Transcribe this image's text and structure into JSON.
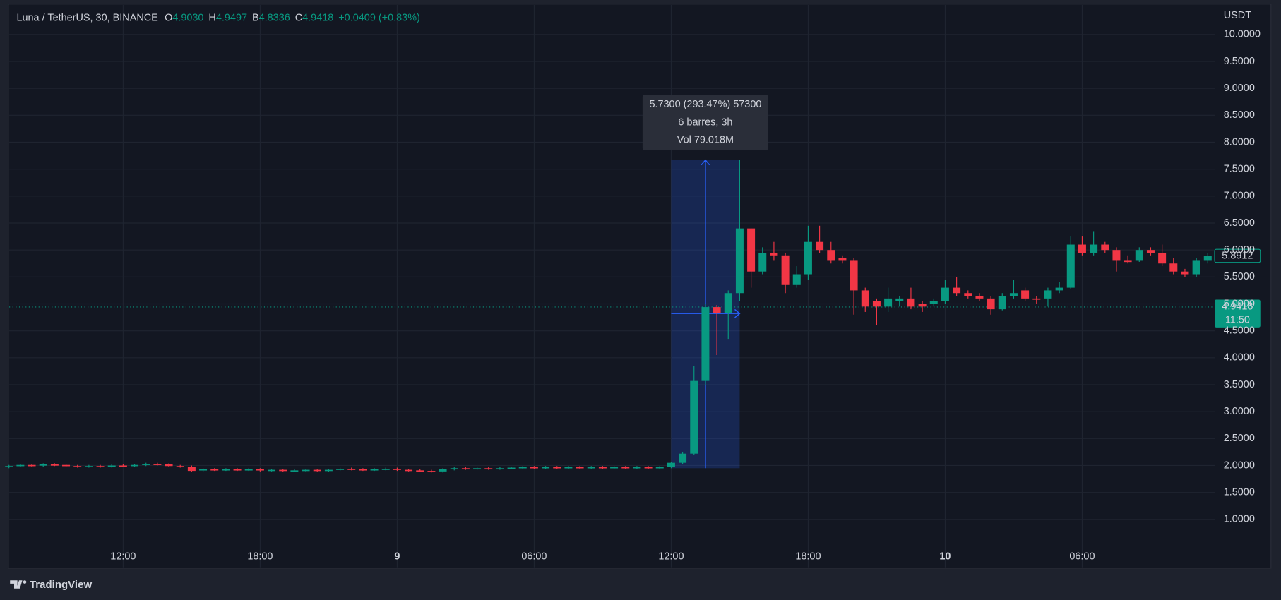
{
  "header": {
    "symbol": "Luna / TetherUS, 30, BINANCE",
    "o_key": "O",
    "o_value": "4.9030",
    "h_key": "H",
    "h_value": "4.9497",
    "b_key": "B",
    "b_value": "4.8336",
    "c_key": "C",
    "c_value": "4.9418",
    "change": "+0.0409 (+0.83%)"
  },
  "chart_data": {
    "type": "candlestick",
    "y_axis_label": "USDT",
    "up_color": "#089981",
    "down_color": "#f23645",
    "grid": true,
    "xlim": [
      -0.05,
      105.6
    ],
    "xticks": [
      {
        "value": 10,
        "label": "12:00"
      },
      {
        "value": 22,
        "label": "18:00"
      },
      {
        "value": 34,
        "label": "9"
      },
      {
        "value": 46,
        "label": "06:00"
      },
      {
        "value": 58,
        "label": "12:00"
      },
      {
        "value": 70,
        "label": "18:00"
      },
      {
        "value": 82,
        "label": "10"
      },
      {
        "value": 94,
        "label": "06:00"
      }
    ],
    "ylim": [
      0.11,
      10.64
    ],
    "yticks": [
      {
        "value": 1,
        "label": "1.0000"
      },
      {
        "value": 1.5,
        "label": "1.5000"
      },
      {
        "value": 2,
        "label": "2.0000"
      },
      {
        "value": 2.5,
        "label": "2.5000"
      },
      {
        "value": 3,
        "label": "3.0000"
      },
      {
        "value": 3.5,
        "label": "3.5000"
      },
      {
        "value": 4,
        "label": "4.0000"
      },
      {
        "value": 4.5,
        "label": "4.5000"
      },
      {
        "value": 5,
        "label": "5.0000"
      },
      {
        "value": 5.5,
        "label": "5.5000"
      },
      {
        "value": 6,
        "label": "6.0000"
      },
      {
        "value": 6.5,
        "label": "6.5000"
      },
      {
        "value": 7,
        "label": "7.0000"
      },
      {
        "value": 7.5,
        "label": "7.5000"
      },
      {
        "value": 8,
        "label": "8.0000"
      },
      {
        "value": 8.5,
        "label": "8.5000"
      },
      {
        "value": 9,
        "label": "9.0000"
      },
      {
        "value": 9.5,
        "label": "9.5000"
      },
      {
        "value": 10,
        "label": "10.0000"
      }
    ],
    "open": [
      1.97,
      1.99,
      2.01,
      2.0,
      2.02,
      2.01,
      1.99,
      1.98,
      1.99,
      1.98,
      2.0,
      1.99,
      2.01,
      2.03,
      2.02,
      1.99,
      1.98,
      1.91,
      1.93,
      1.92,
      1.93,
      1.92,
      1.93,
      1.91,
      1.92,
      1.9,
      1.91,
      1.92,
      1.9,
      1.92,
      1.94,
      1.93,
      1.92,
      1.93,
      1.94,
      1.92,
      1.91,
      1.9,
      1.89,
      1.93,
      1.95,
      1.94,
      1.95,
      1.94,
      1.95,
      1.96,
      1.97,
      1.96,
      1.97,
      1.96,
      1.97,
      1.96,
      1.97,
      1.96,
      1.97,
      1.96,
      1.97,
      1.96,
      1.97,
      2.05,
      2.22,
      3.57,
      4.94,
      4.83,
      5.2,
      6.4,
      5.6,
      5.95,
      5.9,
      5.35,
      5.55,
      6.15,
      6.0,
      5.85,
      5.8,
      5.25,
      5.05,
      4.95,
      5.05,
      5.1,
      5.0,
      5.0,
      5.05,
      5.3,
      5.2,
      5.15,
      5.1,
      4.9,
      5.15,
      5.25,
      5.1,
      5.1,
      5.25,
      5.3,
      6.1,
      5.95,
      6.1,
      6.0,
      5.8,
      5.8,
      6.0,
      5.95,
      5.75,
      5.6,
      5.55,
      5.8
    ],
    "high": [
      2.01,
      2.03,
      2.03,
      2.04,
      2.04,
      2.03,
      2.01,
      2.01,
      2.01,
      2.02,
      2.02,
      2.03,
      2.05,
      2.05,
      2.04,
      2.01,
      2.0,
      1.95,
      1.95,
      1.95,
      1.95,
      1.95,
      1.95,
      1.94,
      1.94,
      1.93,
      1.94,
      1.94,
      1.94,
      1.96,
      1.96,
      1.95,
      1.95,
      1.96,
      1.96,
      1.94,
      1.93,
      1.92,
      1.95,
      1.97,
      1.97,
      1.97,
      1.97,
      1.97,
      1.98,
      1.99,
      1.99,
      1.99,
      1.99,
      1.99,
      1.99,
      1.99,
      1.99,
      1.99,
      1.99,
      1.99,
      1.99,
      1.99,
      2.07,
      2.25,
      3.85,
      5.0,
      4.98,
      5.25,
      7.67,
      6.4,
      6.05,
      6.15,
      5.95,
      5.7,
      6.45,
      6.45,
      6.15,
      5.9,
      5.85,
      5.3,
      5.1,
      5.3,
      5.15,
      5.3,
      5.05,
      5.1,
      5.45,
      5.5,
      5.25,
      5.2,
      5.15,
      5.2,
      5.45,
      5.3,
      5.15,
      5.3,
      5.4,
      6.25,
      6.25,
      6.35,
      6.15,
      6.05,
      5.9,
      6.05,
      6.05,
      6.1,
      5.85,
      5.65,
      5.85,
      5.95
    ],
    "low": [
      1.95,
      1.97,
      1.98,
      1.98,
      1.99,
      1.97,
      1.96,
      1.96,
      1.96,
      1.96,
      1.97,
      1.97,
      1.99,
      2.0,
      1.97,
      1.96,
      1.88,
      1.89,
      1.9,
      1.9,
      1.9,
      1.9,
      1.89,
      1.89,
      1.88,
      1.88,
      1.89,
      1.88,
      1.88,
      1.9,
      1.91,
      1.9,
      1.9,
      1.91,
      1.9,
      1.89,
      1.88,
      1.87,
      1.87,
      1.91,
      1.92,
      1.92,
      1.92,
      1.92,
      1.93,
      1.94,
      1.94,
      1.94,
      1.94,
      1.94,
      1.94,
      1.94,
      1.94,
      1.94,
      1.94,
      1.94,
      1.94,
      1.94,
      1.95,
      2.03,
      2.2,
      3.5,
      4.05,
      4.35,
      5.05,
      5.3,
      5.55,
      5.8,
      5.2,
      5.3,
      5.45,
      5.95,
      5.75,
      5.75,
      4.8,
      4.85,
      4.6,
      4.85,
      4.95,
      4.9,
      4.85,
      4.95,
      5.0,
      5.15,
      5.1,
      5.05,
      4.8,
      4.88,
      5.1,
      5.05,
      5.0,
      4.95,
      5.2,
      5.28,
      5.9,
      5.9,
      5.95,
      5.6,
      5.75,
      5.78,
      5.9,
      5.7,
      5.55,
      5.5,
      5.5,
      5.75
    ],
    "close": [
      1.99,
      2.01,
      2.0,
      2.02,
      2.01,
      1.99,
      1.98,
      1.99,
      1.98,
      2.0,
      1.99,
      2.01,
      2.03,
      2.02,
      1.99,
      1.98,
      1.9,
      1.93,
      1.92,
      1.93,
      1.92,
      1.93,
      1.91,
      1.92,
      1.9,
      1.91,
      1.92,
      1.9,
      1.92,
      1.94,
      1.93,
      1.92,
      1.93,
      1.94,
      1.92,
      1.91,
      1.9,
      1.89,
      1.93,
      1.95,
      1.94,
      1.95,
      1.94,
      1.95,
      1.96,
      1.97,
      1.96,
      1.97,
      1.96,
      1.97,
      1.96,
      1.97,
      1.96,
      1.97,
      1.96,
      1.97,
      1.96,
      1.97,
      2.05,
      2.22,
      3.57,
      4.94,
      4.83,
      5.2,
      6.4,
      5.6,
      5.95,
      5.9,
      5.35,
      5.55,
      6.15,
      6.0,
      5.8,
      5.8,
      5.25,
      4.95,
      4.95,
      5.1,
      5.1,
      4.95,
      4.95,
      5.05,
      5.3,
      5.2,
      5.15,
      5.1,
      4.9,
      5.15,
      5.2,
      5.1,
      5.08,
      5.25,
      5.3,
      6.1,
      5.95,
      6.1,
      6.0,
      5.8,
      5.78,
      6.0,
      5.95,
      5.75,
      5.6,
      5.55,
      5.8,
      5.89
    ],
    "last_price": 5.8912,
    "current_price": 4.9418,
    "countdown": "11:50",
    "measure": {
      "from_index": 58,
      "to_index": 64,
      "from_price": 1.95,
      "to_price": 7.67,
      "arrow_price": 4.82,
      "lines": [
        "5.7300 (293.47%) 57300",
        "6 barres, 3h",
        "Vol 79.018M"
      ]
    }
  },
  "footer": {
    "brand": "TradingView"
  }
}
